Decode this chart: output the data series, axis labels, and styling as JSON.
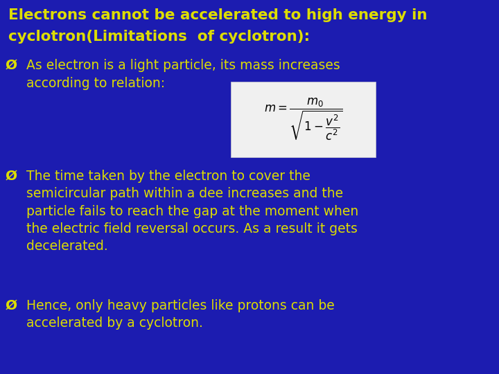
{
  "bg_color": "#1c1cb0",
  "title_color": "#dddd00",
  "body_color": "#dddd00",
  "formula_bg": "#f0f0f0",
  "title_line1": "Electrons cannot be accelerated to high energy in",
  "title_line2": "cyclotron(Limitations  of cyclotron):",
  "bullet1_line1": "As electron is a light particle, its mass increases",
  "bullet1_line2": "according to relation:",
  "bullet2_lines": "The time taken by the electron to cover the\nsemicircular path within a dee increases and the\nparticle fails to reach the gap at the moment when\nthe electric field reversal occurs. As a result it gets\ndecelerated.",
  "bullet3_lines": "Hence, only heavy particles like protons can be\naccelerated by a cyclotron.",
  "title_fontsize": 15.5,
  "body_fontsize": 13.5,
  "bullet_symbol": "➢"
}
